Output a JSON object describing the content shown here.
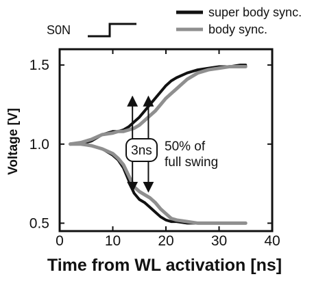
{
  "chart_data": {
    "type": "line",
    "title": "",
    "xlabel": "Time from WL activation [ns]",
    "ylabel": "Voltage [V]",
    "xlim": [
      0,
      40
    ],
    "ylim": [
      0.45,
      1.6
    ],
    "x_ticks": [
      0,
      10,
      20,
      30,
      40
    ],
    "y_ticks": [
      0.5,
      1.0,
      1.5
    ],
    "x_tick_labels": [
      "0",
      "10",
      "20",
      "30",
      "40"
    ],
    "y_tick_labels": [
      "0.5",
      "1.0",
      "1.5"
    ],
    "grid": false,
    "legend_position": "top-right",
    "series": [
      {
        "name": "super body sync.",
        "color": "#111111",
        "style": "solid-black",
        "branches": [
          {
            "x": [
              2,
              4,
              6,
              8,
              10,
              11,
              12,
              13,
              14,
              15,
              16,
              17,
              18,
              19,
              20,
              21,
              22,
              24,
              26,
              28,
              30,
              32,
              34,
              35
            ],
            "y": [
              1.0,
              1.0,
              1.02,
              1.06,
              1.08,
              1.08,
              1.09,
              1.11,
              1.14,
              1.17,
              1.21,
              1.25,
              1.29,
              1.33,
              1.37,
              1.4,
              1.42,
              1.45,
              1.47,
              1.48,
              1.49,
              1.49,
              1.5,
              1.5
            ]
          },
          {
            "x": [
              2,
              4,
              6,
              8,
              10,
              11,
              12,
              13,
              14,
              15,
              16,
              17,
              18,
              19,
              20,
              21,
              22,
              24,
              26,
              28,
              30,
              32,
              34,
              35
            ],
            "y": [
              1.0,
              1.0,
              0.99,
              0.97,
              0.93,
              0.9,
              0.85,
              0.77,
              0.69,
              0.65,
              0.63,
              0.6,
              0.57,
              0.54,
              0.52,
              0.51,
              0.51,
              0.5,
              0.5,
              0.5,
              0.5,
              0.5,
              0.5,
              0.5
            ]
          }
        ]
      },
      {
        "name": "body sync.",
        "color": "#8f8f8f",
        "style": "solid-gray",
        "branches": [
          {
            "x": [
              2,
              4,
              6,
              8,
              10,
              11,
              12,
              13,
              14,
              15,
              16,
              17,
              18,
              19,
              20,
              21,
              22,
              24,
              26,
              28,
              30,
              32,
              34,
              35
            ],
            "y": [
              1.0,
              1.01,
              1.03,
              1.06,
              1.07,
              1.08,
              1.08,
              1.09,
              1.1,
              1.12,
              1.15,
              1.18,
              1.21,
              1.25,
              1.29,
              1.32,
              1.35,
              1.41,
              1.45,
              1.47,
              1.48,
              1.49,
              1.49,
              1.49
            ]
          },
          {
            "x": [
              2,
              4,
              6,
              8,
              10,
              11,
              12,
              13,
              14,
              15,
              16,
              17,
              18,
              19,
              20,
              21,
              22,
              24,
              26,
              28,
              30,
              32,
              34,
              35
            ],
            "y": [
              1.0,
              1.0,
              0.99,
              0.97,
              0.94,
              0.91,
              0.87,
              0.8,
              0.73,
              0.7,
              0.68,
              0.66,
              0.63,
              0.59,
              0.56,
              0.53,
              0.52,
              0.51,
              0.5,
              0.5,
              0.5,
              0.5,
              0.5,
              0.5
            ]
          }
        ]
      }
    ],
    "annotations": {
      "son_label": "S0N",
      "delay_label": "3ns",
      "swing_label_line1": "50% of",
      "swing_label_line2": "full swing",
      "swing_marker_x": [
        13.7,
        16.7
      ],
      "swing_marker_y": [
        0.7,
        1.3
      ]
    }
  }
}
